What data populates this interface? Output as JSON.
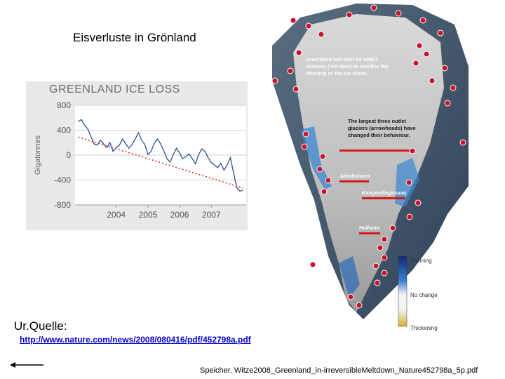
{
  "slide": {
    "title": "Eisverluste in Grönland",
    "source_label": "Ur.Quelle:",
    "source_url": "http://www.nature.com/news/2008/080416/pdf/452798a.pdf",
    "citation": "Speicher. Witze2008_Greenland_in-irreversibleMeltdown_Nature452798a_5p.pdf"
  },
  "chart_data": {
    "type": "line",
    "title": "GREENLAND ICE LOSS",
    "ylabel": "Gigatonnes",
    "xlabel": "",
    "ylim": [
      -800,
      800
    ],
    "xlim": [
      2002.7,
      2008.1
    ],
    "yticks": [
      800,
      400,
      0,
      -400,
      -800
    ],
    "xticks": [
      2004,
      2005,
      2006,
      2007
    ],
    "grid": true,
    "series": [
      {
        "color": "#2a4f8f",
        "x": [
          2002.8,
          2002.9,
          2003.0,
          2003.1,
          2003.2,
          2003.3,
          2003.4,
          2003.5,
          2003.6,
          2003.7,
          2003.8,
          2003.9,
          2004.0,
          2004.1,
          2004.2,
          2004.3,
          2004.4,
          2004.5,
          2004.6,
          2004.7,
          2004.8,
          2004.9,
          2005.0,
          2005.1,
          2005.2,
          2005.3,
          2005.4,
          2005.5,
          2005.6,
          2005.7,
          2005.8,
          2005.9,
          2006.0,
          2006.1,
          2006.2,
          2006.3,
          2006.4,
          2006.5,
          2006.6,
          2006.7,
          2006.8,
          2006.9,
          2007.0,
          2007.1,
          2007.2,
          2007.3,
          2007.4,
          2007.5,
          2007.6,
          2007.7,
          2007.8,
          2007.9,
          2008.0
        ],
        "y": [
          540,
          570,
          480,
          420,
          300,
          180,
          160,
          240,
          180,
          120,
          200,
          60,
          120,
          160,
          260,
          180,
          110,
          170,
          260,
          360,
          240,
          170,
          10,
          60,
          190,
          260,
          180,
          70,
          -60,
          -110,
          10,
          110,
          30,
          -60,
          -20,
          20,
          -60,
          -140,
          10,
          100,
          60,
          -40,
          -120,
          -160,
          -200,
          -130,
          -240,
          -160,
          -40,
          -280,
          -520,
          -580,
          -560
        ]
      },
      {
        "color": "#e03020",
        "style": "dotted",
        "x": [
          2002.8,
          2008.0
        ],
        "y": [
          290,
          -530
        ]
      }
    ]
  },
  "map": {
    "callout_stations": "Greenland will host 54 GNET stations (red dots) to monitor the thinning of the ice sheet.",
    "callout_glaciers": "The largest three outlet glaciers (arrowheads) have changed their behaviour.",
    "glaciers": [
      "Jakobshavn",
      "Kangerdlugssuaq",
      "Helheim"
    ],
    "legend": {
      "thinning": "Thinning",
      "no_change": "No change",
      "thickening": "Thickening"
    },
    "colors": {
      "station": "#c8102e",
      "thinning": "#1a3f8c",
      "thickening": "#d6b236",
      "ocean": "#3a5f8a"
    }
  }
}
